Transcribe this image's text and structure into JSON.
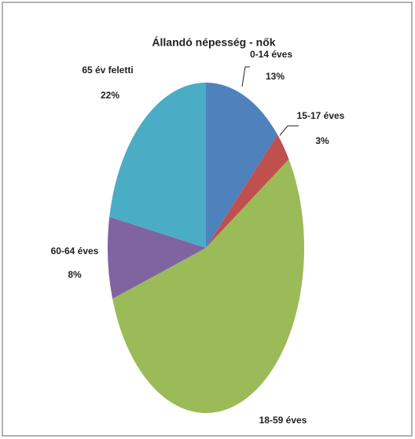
{
  "chart_data": {
    "type": "pie",
    "title": "Állandó népesség - nők",
    "categories": [
      "0-14 éves",
      "15-17 éves",
      "18-59 éves",
      "60-64 éves",
      "65 év feletti"
    ],
    "values": [
      13,
      3,
      54,
      8,
      22
    ],
    "value_labels": [
      "13%",
      "3%",
      null,
      "8%",
      "22%"
    ],
    "colors": [
      "#4f81bd",
      "#c0504d",
      "#9bbb59",
      "#8064a2",
      "#4bacc6"
    ]
  }
}
